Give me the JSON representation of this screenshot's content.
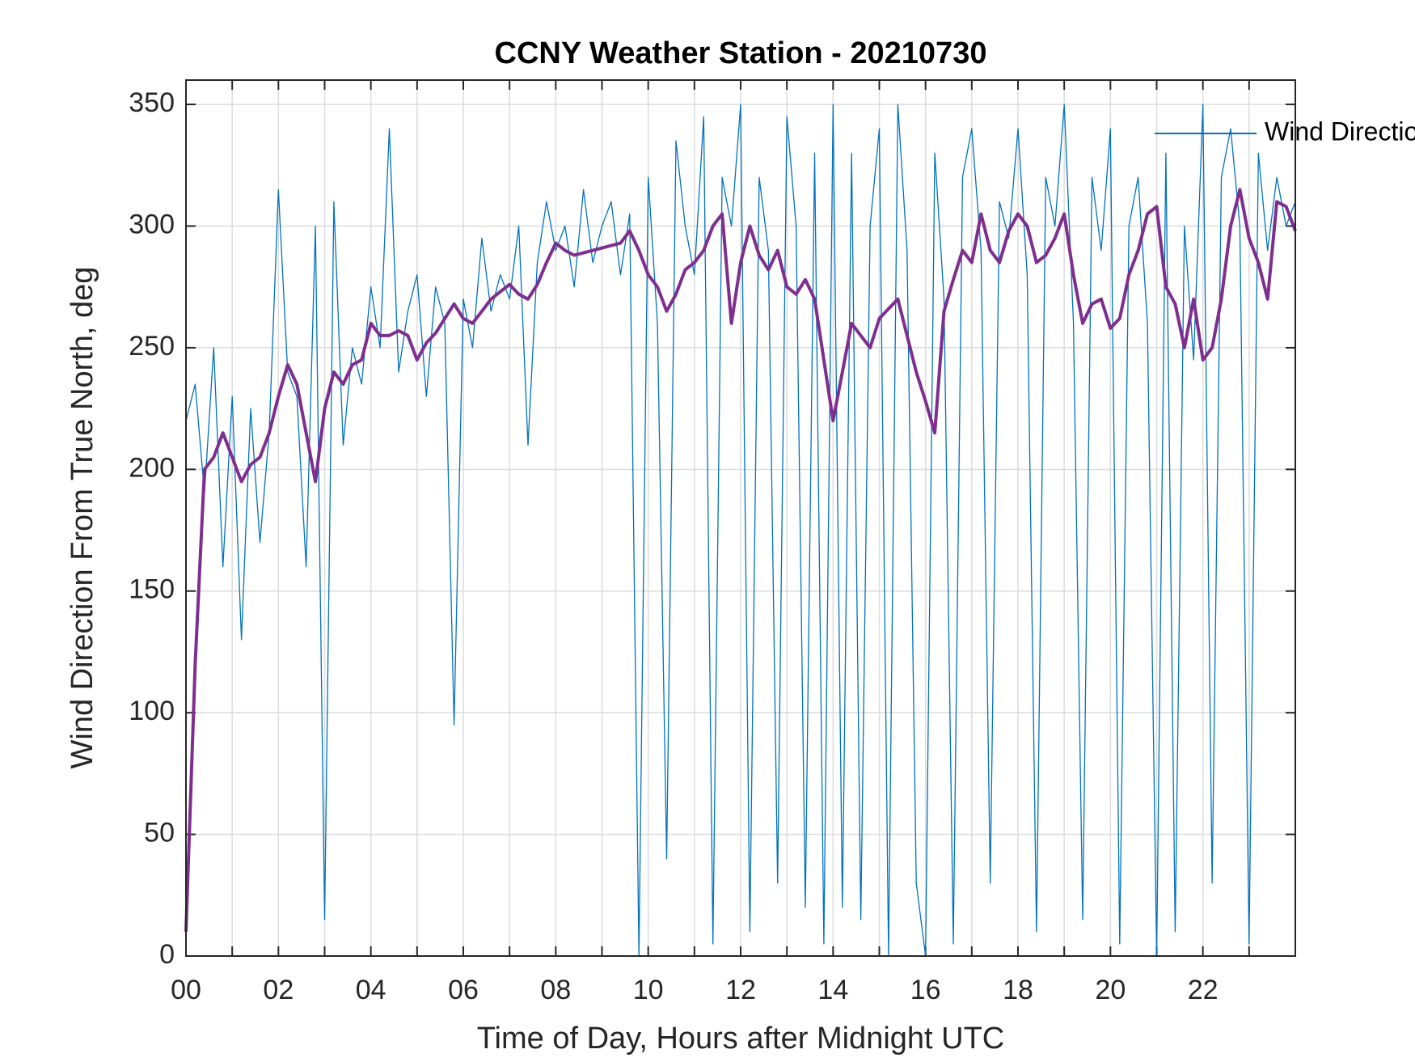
{
  "chart_data": {
    "type": "line",
    "title": "CCNY Weather Station - 20210730",
    "xlabel": "Time of Day, Hours after Midnight UTC",
    "ylabel": "Wind Direction From True North, deg",
    "x": [
      0,
      0.2,
      0.4,
      0.6,
      0.8,
      1.0,
      1.2,
      1.4,
      1.6,
      1.8,
      2.0,
      2.2,
      2.4,
      2.6,
      2.8,
      3.0,
      3.2,
      3.4,
      3.6,
      3.8,
      4.0,
      4.2,
      4.4,
      4.6,
      4.8,
      5.0,
      5.2,
      5.4,
      5.6,
      5.8,
      6.0,
      6.2,
      6.4,
      6.6,
      6.8,
      7.0,
      7.2,
      7.4,
      7.6,
      7.8,
      8.0,
      8.2,
      8.4,
      8.6,
      8.8,
      9.0,
      9.2,
      9.4,
      9.6,
      9.8,
      10.0,
      10.2,
      10.4,
      10.6,
      10.8,
      11.0,
      11.2,
      11.4,
      11.6,
      11.8,
      12.0,
      12.2,
      12.4,
      12.6,
      12.8,
      13.0,
      13.2,
      13.4,
      13.6,
      13.8,
      14.0,
      14.2,
      14.4,
      14.6,
      14.8,
      15.0,
      15.2,
      15.4,
      15.6,
      15.8,
      16.0,
      16.2,
      16.4,
      16.6,
      16.8,
      17.0,
      17.2,
      17.4,
      17.6,
      17.8,
      18.0,
      18.2,
      18.4,
      18.6,
      18.8,
      19.0,
      19.2,
      19.4,
      19.6,
      19.8,
      20.0,
      20.2,
      20.4,
      20.6,
      20.8,
      21.0,
      21.2,
      21.4,
      21.6,
      21.8,
      22.0,
      22.2,
      22.4,
      22.6,
      22.8,
      23.0,
      23.2,
      23.4,
      23.6,
      23.8,
      24.0
    ],
    "series": [
      {
        "name": "Wind Direction",
        "color": "#0072bd",
        "width": 1.3,
        "values": [
          220,
          235,
          190,
          250,
          160,
          230,
          130,
          225,
          170,
          215,
          315,
          240,
          230,
          160,
          300,
          15,
          310,
          210,
          250,
          235,
          275,
          250,
          340,
          240,
          265,
          280,
          230,
          275,
          260,
          95,
          270,
          250,
          295,
          265,
          280,
          270,
          300,
          210,
          285,
          310,
          290,
          300,
          275,
          315,
          285,
          300,
          310,
          280,
          305,
          0,
          320,
          260,
          40,
          335,
          300,
          280,
          345,
          5,
          320,
          300,
          350,
          10,
          320,
          290,
          30,
          345,
          300,
          20,
          330,
          5,
          350,
          20,
          330,
          15,
          300,
          340,
          0,
          350,
          290,
          30,
          0,
          330,
          270,
          5,
          320,
          340,
          290,
          30,
          310,
          295,
          340,
          280,
          10,
          320,
          300,
          350,
          260,
          15,
          320,
          290,
          340,
          5,
          300,
          320,
          260,
          0,
          330,
          10,
          300,
          245,
          350,
          30,
          320,
          340,
          300,
          5,
          330,
          290,
          320,
          300,
          310
        ]
      },
      {
        "color": "#7e2f8e",
        "width": 4,
        "values": [
          10,
          120,
          200,
          205,
          215,
          205,
          195,
          202,
          205,
          215,
          230,
          243,
          235,
          215,
          195,
          225,
          240,
          235,
          243,
          245,
          260,
          255,
          255,
          257,
          255,
          245,
          252,
          256,
          262,
          268,
          262,
          260,
          265,
          270,
          273,
          276,
          272,
          270,
          276,
          285,
          293,
          290,
          288,
          289,
          290,
          291,
          292,
          293,
          298,
          290,
          280,
          275,
          265,
          272,
          282,
          285,
          290,
          300,
          305,
          260,
          285,
          300,
          288,
          282,
          290,
          275,
          272,
          278,
          270,
          245,
          220,
          240,
          260,
          255,
          250,
          262,
          266,
          270,
          255,
          240,
          228,
          215,
          265,
          278,
          290,
          285,
          305,
          290,
          285,
          298,
          305,
          300,
          285,
          288,
          295,
          305,
          280,
          260,
          268,
          270,
          258,
          262,
          280,
          290,
          305,
          308,
          275,
          268,
          250,
          270,
          245,
          250,
          270,
          300,
          315,
          295,
          285,
          270,
          310,
          308,
          298
        ]
      }
    ],
    "xlim": [
      0,
      24
    ],
    "xticks": [
      {
        "value": 0,
        "label": "00"
      },
      {
        "value": 2,
        "label": "02"
      },
      {
        "value": 4,
        "label": "04"
      },
      {
        "value": 6,
        "label": "06"
      },
      {
        "value": 8,
        "label": "08"
      },
      10,
      12,
      14,
      16,
      18,
      20,
      22
    ],
    "xminor": [
      1,
      3,
      5,
      7,
      9,
      11,
      13,
      15,
      17,
      19,
      21,
      23
    ],
    "ylim": [
      0,
      360
    ],
    "yticks": [
      0,
      50,
      100,
      150,
      200,
      250,
      300,
      350
    ],
    "grid": true,
    "legend": "upper right"
  }
}
